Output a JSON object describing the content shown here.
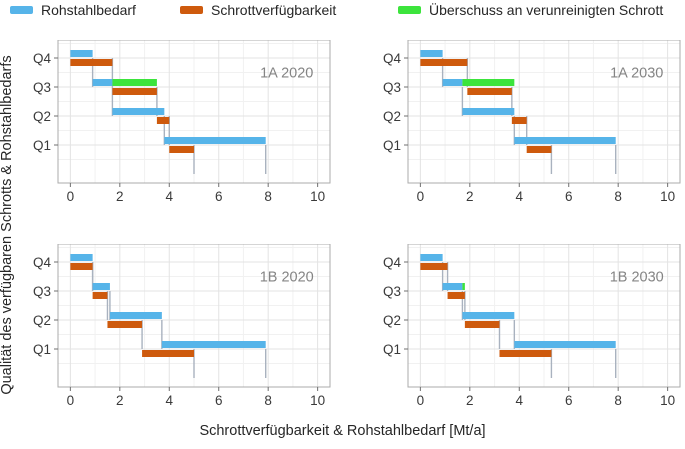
{
  "legend": {
    "items": [
      {
        "label": "Rohstahlbedarf",
        "color": "#56B4E9",
        "icon": "blue-line-swatch"
      },
      {
        "label": "Schrottverfügbarkeit",
        "color": "#CE5A0D",
        "icon": "orange-line-swatch"
      },
      {
        "label": "Überschuss an verunreinigten Schrott",
        "color": "#3CE43C",
        "icon": "green-line-swatch"
      }
    ]
  },
  "axes": {
    "x_title": "Schrottverfügbarkeit & Rohstahlbedarf [Mt/a]",
    "y_title": "Qualität des verfügbaren Schrotts & Rohstahlbedarfs"
  },
  "chart_data": {
    "type": "line",
    "subtype": "step-facets",
    "xlabel": "Schrottverfügbarkeit & Rohstahlbedarf [Mt/a]",
    "ylabel": "Qualität des verfügbaren Schrotts & Rohstahlbedarfs",
    "xlim": [
      0,
      10
    ],
    "x_ticks": [
      0,
      2,
      4,
      6,
      8,
      10
    ],
    "y_categories": [
      "Q1",
      "Q2",
      "Q3",
      "Q4"
    ],
    "grid": true,
    "legend_position": "top",
    "colors": {
      "rohstahlbedarf": "#56B4E9",
      "schrottverfuegbarkeit": "#CE5A0D",
      "ueberschuss": "#3CE43C",
      "connector": "#A9B2BF",
      "grid_major": "#E3E3E3",
      "grid_minor": "#F1F1F1",
      "panel_border": "#ABABAB",
      "tick": "#6F6F6F",
      "tick_label": "#3A3A3A",
      "panel_label": "#848484"
    },
    "series_note": "segments are [quality_level(Q1=1..Q4=4), x_start_Mt/a, x_end_Mt/a]",
    "panels": [
      {
        "id": "1a-2020",
        "label": "1A 2020",
        "rohstahlbedarf": [
          [
            4,
            0,
            0.9
          ],
          [
            3,
            0.9,
            1.7
          ],
          [
            2,
            1.7,
            3.8
          ],
          [
            1,
            3.8,
            7.9
          ]
        ],
        "schrottverfuegbarkeit": [
          [
            4,
            0,
            1.7
          ],
          [
            3,
            1.7,
            3.5
          ],
          [
            2,
            3.5,
            4.0
          ],
          [
            1,
            4.0,
            5.0
          ]
        ],
        "ueberschuss": [
          [
            3,
            1.7,
            3.5
          ]
        ]
      },
      {
        "id": "1a-2030",
        "label": "1A 2030",
        "rohstahlbedarf": [
          [
            4,
            0,
            0.9
          ],
          [
            3,
            0.9,
            1.7
          ],
          [
            2,
            1.7,
            3.8
          ],
          [
            1,
            3.8,
            7.9
          ]
        ],
        "schrottverfuegbarkeit": [
          [
            4,
            0,
            1.9
          ],
          [
            3,
            1.9,
            3.7
          ],
          [
            2,
            3.7,
            4.3
          ],
          [
            1,
            4.3,
            5.3
          ]
        ],
        "ueberschuss": [
          [
            3,
            1.7,
            3.8
          ]
        ]
      },
      {
        "id": "1b-2020",
        "label": "1B 2020",
        "rohstahlbedarf": [
          [
            4,
            0,
            0.9
          ],
          [
            3,
            0.9,
            1.6
          ],
          [
            2,
            1.6,
            3.7
          ],
          [
            1,
            3.7,
            7.9
          ]
        ],
        "schrottverfuegbarkeit": [
          [
            4,
            0,
            0.9
          ],
          [
            3,
            0.9,
            1.5
          ],
          [
            2,
            1.5,
            2.9
          ],
          [
            1,
            2.9,
            5.0
          ]
        ],
        "ueberschuss": []
      },
      {
        "id": "1b-2030",
        "label": "1B 2030",
        "rohstahlbedarf": [
          [
            4,
            0,
            0.9
          ],
          [
            3,
            0.9,
            1.7
          ],
          [
            2,
            1.7,
            3.8
          ],
          [
            1,
            3.8,
            7.9
          ]
        ],
        "schrottverfuegbarkeit": [
          [
            4,
            0,
            1.1
          ],
          [
            3,
            1.1,
            1.8
          ],
          [
            2,
            1.8,
            3.2
          ],
          [
            1,
            3.2,
            5.3
          ]
        ],
        "ueberschuss": [
          [
            3,
            1.7,
            1.8
          ]
        ]
      }
    ]
  }
}
